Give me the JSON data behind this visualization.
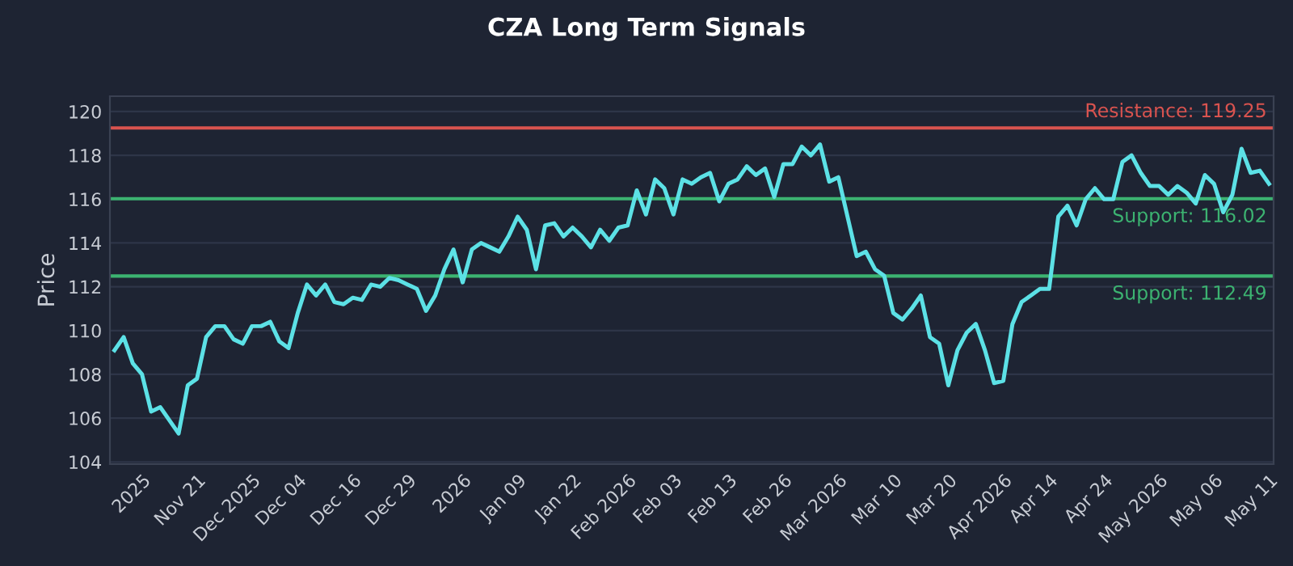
{
  "chart_data": {
    "type": "line",
    "title": "CZA Long Term Signals",
    "ylabel": "Price",
    "categories": [
      null,
      null,
      null,
      "2025",
      null,
      null,
      null,
      null,
      null,
      "Nov 21",
      null,
      null,
      null,
      null,
      null,
      "Dec 2025",
      null,
      null,
      null,
      null,
      "Dec 04",
      null,
      null,
      null,
      null,
      null,
      "Dec 16",
      null,
      null,
      null,
      null,
      null,
      "Dec 29",
      null,
      null,
      null,
      null,
      null,
      "2026",
      null,
      null,
      null,
      null,
      null,
      "Jan 09",
      null,
      null,
      null,
      null,
      null,
      "Jan 22",
      null,
      null,
      null,
      null,
      null,
      "Feb 2026",
      null,
      null,
      null,
      null,
      "Feb 03",
      null,
      null,
      null,
      null,
      null,
      "Feb 13",
      null,
      null,
      null,
      null,
      null,
      "Feb 26",
      null,
      null,
      null,
      null,
      null,
      "Mar 2026",
      null,
      null,
      null,
      null,
      null,
      "Mar 10",
      null,
      null,
      null,
      null,
      null,
      "Mar 20",
      null,
      null,
      null,
      null,
      null,
      "Apr 2026",
      null,
      null,
      null,
      null,
      "Apr 14",
      null,
      null,
      null,
      null,
      null,
      "Apr 24",
      null,
      null,
      null,
      null,
      null,
      "May 2026",
      null,
      null,
      null,
      null,
      null,
      "May 06",
      null,
      null,
      null,
      null,
      null,
      "May 11"
    ],
    "series": [
      {
        "color": "#5ce1e6",
        "values": [
          109.1,
          109.7,
          108.5,
          108.0,
          106.3,
          106.5,
          105.9,
          105.3,
          107.5,
          107.8,
          109.7,
          110.2,
          110.2,
          109.6,
          109.4,
          110.2,
          110.2,
          110.4,
          109.5,
          109.2,
          110.8,
          112.1,
          111.6,
          112.1,
          111.3,
          111.2,
          111.5,
          111.4,
          112.1,
          112.0,
          112.4,
          112.3,
          112.1,
          111.9,
          110.9,
          111.6,
          112.8,
          113.7,
          112.2,
          113.7,
          114.0,
          113.8,
          113.6,
          114.3,
          115.2,
          114.6,
          112.8,
          114.8,
          114.9,
          114.3,
          114.7,
          114.3,
          113.8,
          114.6,
          114.1,
          114.7,
          114.8,
          116.4,
          115.3,
          116.9,
          116.5,
          115.3,
          116.9,
          116.7,
          117.0,
          117.2,
          115.9,
          116.7,
          116.9,
          117.5,
          117.1,
          117.4,
          116.1,
          117.6,
          117.6,
          118.4,
          118.0,
          118.5,
          116.8,
          117.0,
          115.2,
          113.4,
          113.6,
          112.8,
          112.5,
          110.8,
          110.5,
          111.0,
          111.6,
          109.7,
          109.4,
          107.5,
          109.1,
          109.9,
          110.3,
          109.1,
          107.6,
          107.7,
          110.3,
          111.3,
          111.6,
          111.9,
          111.9,
          115.2,
          115.7,
          114.8,
          116.0,
          116.5,
          116.0,
          116.0,
          117.7,
          118.0,
          117.2,
          116.6,
          116.6,
          116.2,
          116.6,
          116.3,
          115.8,
          117.1,
          116.7,
          115.4,
          116.2,
          118.3,
          117.2,
          117.3,
          116.7
        ]
      }
    ],
    "ylim": [
      103.9,
      120.7
    ],
    "yticks": [
      104,
      106,
      108,
      110,
      112,
      114,
      116,
      118,
      120
    ],
    "grid": "y",
    "ref_lines": [
      {
        "axis": "y",
        "value": 119.25,
        "label": "Resistance: 119.25",
        "color": "#d9534f"
      },
      {
        "axis": "y",
        "value": 116.02,
        "label": "Support: 116.02",
        "color": "#3cb371"
      },
      {
        "axis": "y",
        "value": 112.49,
        "label": "Support: 112.49",
        "color": "#3cb371"
      }
    ]
  }
}
